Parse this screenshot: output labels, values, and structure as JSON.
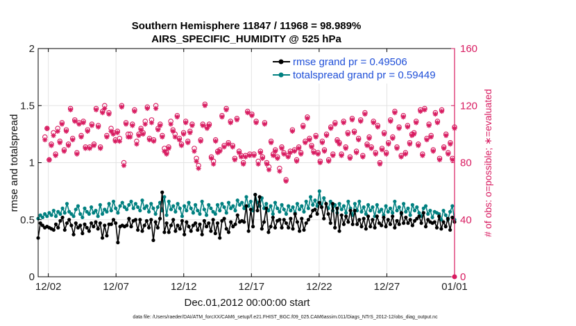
{
  "chart_data": {
    "type": "line",
    "title": "Southern Hemisphere 11847 / 11968 = 98.989%",
    "subtitle": "AIRS_SPECIFIC_HUMIDITY @ 525 hPa",
    "xlabel": "Dec.01,2012 00:00:00 start",
    "ylabel": "rmse and totalspread",
    "ylabel_right": "# of obs: o=possible; ∗=evaluated",
    "footnote": "data file: /Users/raeder/DAI/ATM_forcXX/CAM6_setup/f.e21.FHIST_BGC.f09_025.CAM6assim.011/Diags_NTrS_2012-12/obs_diag_output.nc",
    "x_tick_labels": [
      "12/02",
      "12/07",
      "12/12",
      "12/17",
      "12/22",
      "12/27",
      "01/01"
    ],
    "x_tick_days": [
      1,
      6,
      11,
      16,
      21,
      26,
      31
    ],
    "xlim": [
      0.25,
      31
    ],
    "ylim_left": [
      0,
      2
    ],
    "y_ticks_left": [
      "0",
      "0.5",
      "1",
      "1.5",
      "2"
    ],
    "ylim_right": [
      0,
      160
    ],
    "y_ticks_right": [
      "0",
      "40",
      "80",
      "120",
      "160"
    ],
    "grid": true,
    "legend_position": "top-right",
    "colors": {
      "rmse": "#000000",
      "spread": "#008080",
      "obs": "#d81b60",
      "legend_text": "#1f4fd8"
    },
    "series": [
      {
        "name": "rmse grand pr = 0.49506",
        "axis": "left",
        "values": [
          0.34,
          0.47,
          0.45,
          0.43,
          0.44,
          0.43,
          0.42,
          0.41,
          0.46,
          0.43,
          0.49,
          0.52,
          0.41,
          0.47,
          0.5,
          0.45,
          0.37,
          0.47,
          0.43,
          0.45,
          0.38,
          0.46,
          0.43,
          0.4,
          0.47,
          0.44,
          0.48,
          0.42,
          0.47,
          0.34,
          0.45,
          0.36,
          0.46,
          0.46,
          0.5,
          0.47,
          0.3,
          0.44,
          0.45,
          0.44,
          0.45,
          0.51,
          0.44,
          0.49,
          0.5,
          0.41,
          0.5,
          0.4,
          0.45,
          0.49,
          0.43,
          0.5,
          0.32,
          0.48,
          0.43,
          0.51,
          0.74,
          0.39,
          0.47,
          0.39,
          0.45,
          0.5,
          0.4,
          0.45,
          0.42,
          0.49,
          0.37,
          0.48,
          0.44,
          0.4,
          0.45,
          0.47,
          0.41,
          0.46,
          0.37,
          0.49,
          0.44,
          0.47,
          0.4,
          0.5,
          0.38,
          0.47,
          0.34,
          0.49,
          0.51,
          0.42,
          0.39,
          0.48,
          0.44,
          0.46,
          0.54,
          0.48,
          0.49,
          0.48,
          0.62,
          0.4,
          0.59,
          0.44,
          0.72,
          0.58,
          0.7,
          0.42,
          0.48,
          0.6,
          0.39,
          0.44,
          0.52,
          0.43,
          0.49,
          0.5,
          0.43,
          0.5,
          0.47,
          0.43,
          0.51,
          0.42,
          0.55,
          0.48,
          0.4,
          0.51,
          0.41,
          0.47,
          0.5,
          0.53,
          0.58,
          0.59,
          0.55,
          0.65,
          0.61,
          0.51,
          0.64,
          0.55,
          0.47,
          0.64,
          0.43,
          0.6,
          0.4,
          0.54,
          0.46,
          0.53,
          0.48,
          0.58,
          0.46,
          0.58,
          0.46,
          0.5,
          0.44,
          0.51,
          0.42,
          0.53,
          0.44,
          0.5,
          0.43,
          0.53,
          0.47,
          0.45,
          0.52,
          0.44,
          0.5,
          0.46,
          0.53,
          0.43,
          0.49,
          0.46,
          0.56,
          0.47,
          0.52,
          0.47,
          0.5,
          0.45,
          0.49,
          0.51,
          0.53,
          0.47,
          0.56,
          0.44,
          0.5,
          0.48,
          0.47,
          0.48,
          0.43,
          0.53,
          0.42,
          0.48,
          0.44,
          0.51,
          0.41,
          0.52,
          0.48
        ]
      },
      {
        "name": "totalspread grand pr = 0.59449",
        "axis": "left",
        "values": [
          0.51,
          0.54,
          0.52,
          0.55,
          0.53,
          0.56,
          0.54,
          0.58,
          0.53,
          0.57,
          0.55,
          0.6,
          0.56,
          0.64,
          0.57,
          0.55,
          0.53,
          0.59,
          0.62,
          0.55,
          0.52,
          0.6,
          0.57,
          0.55,
          0.61,
          0.56,
          0.58,
          0.53,
          0.63,
          0.55,
          0.59,
          0.57,
          0.64,
          0.58,
          0.66,
          0.6,
          0.56,
          0.62,
          0.65,
          0.61,
          0.59,
          0.63,
          0.66,
          0.6,
          0.64,
          0.61,
          0.58,
          0.67,
          0.6,
          0.62,
          0.57,
          0.64,
          0.6,
          0.55,
          0.61,
          0.65,
          0.58,
          0.7,
          0.54,
          0.66,
          0.59,
          0.62,
          0.57,
          0.64,
          0.6,
          0.53,
          0.62,
          0.58,
          0.65,
          0.6,
          0.56,
          0.63,
          0.58,
          0.55,
          0.66,
          0.59,
          0.54,
          0.63,
          0.6,
          0.57,
          0.55,
          0.63,
          0.58,
          0.64,
          0.61,
          0.56,
          0.65,
          0.6,
          0.62,
          0.58,
          0.67,
          0.63,
          0.65,
          0.6,
          0.7,
          0.62,
          0.66,
          0.58,
          0.72,
          0.65,
          0.62,
          0.69,
          0.6,
          0.64,
          0.58,
          0.62,
          0.55,
          0.65,
          0.6,
          0.57,
          0.63,
          0.59,
          0.55,
          0.62,
          0.58,
          0.61,
          0.56,
          0.64,
          0.59,
          0.62,
          0.57,
          0.66,
          0.6,
          0.7,
          0.63,
          0.67,
          0.62,
          0.75,
          0.61,
          0.69,
          0.64,
          0.6,
          0.66,
          0.58,
          0.63,
          0.56,
          0.64,
          0.59,
          0.62,
          0.56,
          0.66,
          0.6,
          0.54,
          0.64,
          0.58,
          0.66,
          0.57,
          0.61,
          0.55,
          0.63,
          0.58,
          0.61,
          0.53,
          0.63,
          0.57,
          0.59,
          0.54,
          0.62,
          0.57,
          0.6,
          0.56,
          0.66,
          0.58,
          0.61,
          0.55,
          0.64,
          0.57,
          0.6,
          0.54,
          0.63,
          0.58,
          0.61,
          0.56,
          0.53,
          0.6,
          0.62,
          0.55,
          0.58,
          0.52,
          0.57,
          0.56,
          0.55,
          0.5,
          0.58,
          0.54,
          0.5,
          0.57,
          0.62,
          0.5
        ]
      },
      {
        "name": "possible obs",
        "axis": "right",
        "marker": "circle",
        "values": [
          98,
          104,
          82,
          93,
          101,
          86,
          104,
          95,
          108,
          89,
          103,
          93,
          118,
          97,
          110,
          87,
          108,
          99,
          109,
          91,
          103,
          91,
          107,
          93,
          118,
          106,
          91,
          116,
          120,
          99,
          115,
          104,
          101,
          96,
          102,
          97,
          120,
          80,
          108,
          100,
          100,
          107,
          117,
          95,
          100,
          104,
          101,
          109,
          119,
          97,
          110,
          96,
          120,
          104,
          107,
          99,
          90,
          87,
          91,
          109,
          103,
          100,
          113,
          97,
          93,
          101,
          109,
          95,
          102,
          107,
          90,
          83,
          78,
          96,
          107,
          121,
          105,
          107,
          84,
          81,
          96,
          88,
          89,
          113,
          92,
          118,
          94,
          109,
          92,
          83,
          111,
          88,
          85,
          80,
          85,
          116,
          86,
          114,
          86,
          109,
          81,
          88,
          84,
          108,
          80,
          77,
          95,
          86,
          89,
          84,
          76,
          91,
          87,
          68,
          85,
          88,
          103,
          89,
          82,
          91,
          87,
          106,
          95,
          112,
          97,
          92,
          88,
          99,
          87,
          81,
          95,
          89,
          100,
          82,
          105,
          86,
          108,
          96,
          94,
          86,
          109,
          91,
          101,
          84,
          111,
          102,
          88,
          97,
          110,
          85,
          115,
          93,
          98,
          91,
          109,
          87,
          106,
          80,
          90,
          101,
          87,
          94,
          110,
          98,
          116,
          91,
          105,
          85,
          113,
          87,
          106,
          94,
          100,
          101,
          109,
          93,
          117,
          86,
          118,
          97,
          107,
          99,
          89,
          115,
          109,
          83,
          117,
          91,
          100,
          87,
          94,
          83,
          105
        ]
      },
      {
        "name": "evaluated obs",
        "axis": "right",
        "marker": "asterisk",
        "values": [
          96,
          104,
          82,
          92,
          99,
          85,
          102,
          94,
          107,
          88,
          102,
          92,
          117,
          96,
          109,
          86,
          107,
          98,
          108,
          90,
          102,
          90,
          106,
          92,
          117,
          105,
          90,
          115,
          118,
          98,
          114,
          102,
          100,
          95,
          101,
          95,
          119,
          78,
          107,
          98,
          98,
          106,
          116,
          93,
          99,
          103,
          100,
          107,
          118,
          96,
          108,
          95,
          118,
          103,
          106,
          98,
          88,
          86,
          90,
          107,
          102,
          98,
          112,
          96,
          92,
          100,
          108,
          94,
          101,
          106,
          88,
          81,
          76,
          95,
          106,
          120,
          104,
          106,
          83,
          79,
          95,
          87,
          88,
          112,
          91,
          117,
          93,
          108,
          91,
          82,
          110,
          87,
          84,
          79,
          84,
          115,
          85,
          113,
          85,
          108,
          79,
          87,
          83,
          107,
          79,
          75,
          94,
          85,
          88,
          83,
          74,
          90,
          86,
          67,
          84,
          87,
          102,
          88,
          81,
          90,
          86,
          105,
          94,
          111,
          96,
          91,
          87,
          98,
          86,
          80,
          94,
          88,
          99,
          81,
          104,
          85,
          107,
          95,
          93,
          85,
          108,
          90,
          100,
          83,
          110,
          101,
          87,
          96,
          109,
          84,
          114,
          92,
          97,
          90,
          108,
          86,
          105,
          79,
          89,
          100,
          86,
          93,
          109,
          97,
          115,
          90,
          104,
          84,
          112,
          86,
          105,
          93,
          99,
          100,
          108,
          92,
          116,
          85,
          117,
          96,
          106,
          98,
          88,
          114,
          108,
          82,
          116,
          90,
          99,
          86,
          93,
          82,
          104
        ]
      }
    ]
  }
}
